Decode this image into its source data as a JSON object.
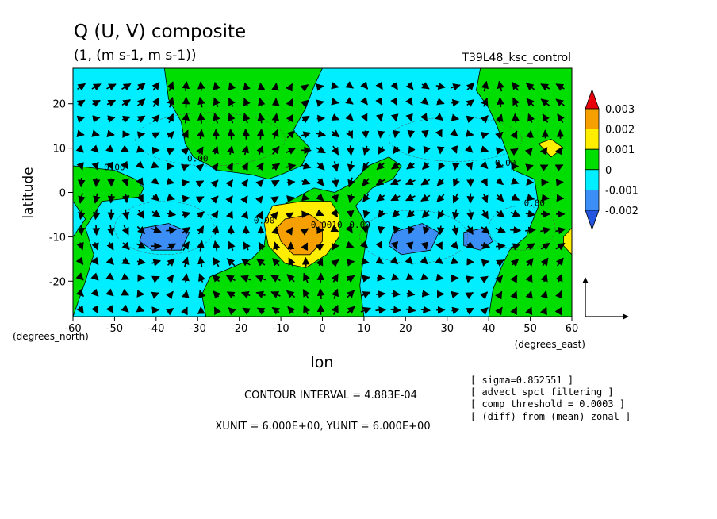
{
  "chart_data": {
    "type": "heatmap",
    "title": "Q (U, V) composite",
    "subtitle": "(1, (m s-1, m s-1))",
    "run_name": "T39L48_ksc_control",
    "xlabel": "lon",
    "ylabel": "latitude",
    "x_unit_label": "(degrees_east)",
    "y_unit_label": "(degrees_north)",
    "xlim": [
      -60,
      60
    ],
    "ylim": [
      -28,
      28
    ],
    "x_ticks": [
      "-60",
      "-50",
      "-40",
      "-30",
      "-20",
      "-10",
      "0",
      "10",
      "20",
      "30",
      "40",
      "50",
      "60"
    ],
    "x_tick_values": [
      -60,
      -50,
      -40,
      -30,
      -20,
      -10,
      0,
      10,
      20,
      30,
      40,
      50,
      60
    ],
    "y_ticks": [
      "-20",
      "-10",
      "0",
      "10",
      "20"
    ],
    "y_tick_values": [
      -20,
      -10,
      0,
      10,
      20
    ],
    "colorbar": {
      "labels": [
        "0.003",
        "0.002",
        "0.001",
        "0",
        "-0.001",
        "-0.002"
      ],
      "values": [
        0.003,
        0.002,
        0.001,
        0,
        -0.001,
        -0.002
      ],
      "colors": [
        "#e8000b",
        "#f5a000",
        "#ffee00",
        "#00dd00",
        "#00eeff",
        "#3a8ef6",
        "#2455e0"
      ]
    },
    "contour_labels": [
      {
        "text": "0.00",
        "x": -50,
        "y": 5
      },
      {
        "text": "0.00",
        "x": -30,
        "y": 7
      },
      {
        "text": "0.00",
        "x": -14,
        "y": -7
      },
      {
        "text": "0.0010",
        "x": 1,
        "y": -8
      },
      {
        "text": "0.00",
        "x": 9,
        "y": -8
      },
      {
        "text": "0.00",
        "x": 44,
        "y": 6
      },
      {
        "text": "0.00",
        "x": 51,
        "y": -3
      }
    ],
    "regions": [
      {
        "level": 0,
        "points": [
          [
            -60,
            -28
          ],
          [
            -60,
            -10
          ],
          [
            -57,
            -6
          ],
          [
            -60,
            -2
          ],
          [
            -60,
            6
          ],
          [
            -50,
            5
          ],
          [
            -45,
            3
          ],
          [
            -43,
            1
          ],
          [
            -44,
            -1
          ],
          [
            -53,
            -2
          ],
          [
            -57,
            -8
          ],
          [
            -55,
            -14
          ],
          [
            -57,
            -20
          ],
          [
            -60,
            -28
          ]
        ]
      },
      {
        "level": 0,
        "points": [
          [
            -38,
            28
          ],
          [
            -37,
            21
          ],
          [
            -34,
            16
          ],
          [
            -33,
            11
          ],
          [
            -31,
            8
          ],
          [
            -25,
            5
          ],
          [
            -17,
            4
          ],
          [
            -13,
            3
          ],
          [
            -10,
            4
          ],
          [
            -5,
            6
          ],
          [
            -3,
            10
          ],
          [
            -7,
            14
          ],
          [
            -4,
            19
          ],
          [
            -2,
            24
          ],
          [
            0,
            28
          ]
        ]
      },
      {
        "level": 0,
        "points": [
          [
            -28,
            -28
          ],
          [
            -29,
            -23
          ],
          [
            -27,
            -19
          ],
          [
            -22,
            -17
          ],
          [
            -17,
            -15
          ],
          [
            -14,
            -12
          ],
          [
            -13,
            -5
          ],
          [
            -8,
            -2
          ],
          [
            -2,
            1
          ],
          [
            3,
            0
          ],
          [
            7,
            2
          ],
          [
            11,
            6
          ],
          [
            16,
            8
          ],
          [
            19,
            6
          ],
          [
            17,
            3
          ],
          [
            12,
            1
          ],
          [
            8,
            -3
          ],
          [
            11,
            -8
          ],
          [
            10,
            -14
          ],
          [
            9,
            -21
          ],
          [
            10,
            -28
          ]
        ]
      },
      {
        "level": 0,
        "points": [
          [
            38,
            28
          ],
          [
            37,
            23
          ],
          [
            40,
            19
          ],
          [
            42,
            15
          ],
          [
            44,
            10
          ],
          [
            46,
            5
          ],
          [
            51,
            3
          ],
          [
            52,
            -3
          ],
          [
            49,
            -10
          ],
          [
            45,
            -13
          ],
          [
            43,
            -17
          ],
          [
            41,
            -22
          ],
          [
            40,
            -28
          ],
          [
            60,
            -28
          ],
          [
            60,
            28
          ]
        ]
      },
      {
        "level": 0.001,
        "points": [
          [
            -12,
            -3
          ],
          [
            -5,
            -2
          ],
          [
            2,
            -2
          ],
          [
            4,
            -5
          ],
          [
            4,
            -10
          ],
          [
            1,
            -14
          ],
          [
            -4,
            -17
          ],
          [
            -9,
            -16
          ],
          [
            -13,
            -12
          ],
          [
            -14,
            -7
          ]
        ]
      },
      {
        "level": 0.002,
        "points": [
          [
            -9,
            -6
          ],
          [
            -3,
            -5
          ],
          [
            0,
            -7
          ],
          [
            0,
            -11
          ],
          [
            -3,
            -14
          ],
          [
            -7,
            -14
          ],
          [
            -10,
            -11
          ],
          [
            -11,
            -8
          ]
        ]
      },
      {
        "level": 0.001,
        "points": [
          [
            52,
            11
          ],
          [
            55,
            8
          ],
          [
            58,
            10
          ],
          [
            55,
            12
          ]
        ]
      },
      {
        "level": 0.001,
        "points": [
          [
            58,
            -10
          ],
          [
            60,
            -8
          ],
          [
            60,
            -14
          ],
          [
            58,
            -12
          ]
        ]
      },
      {
        "level": -0.001,
        "points": [
          [
            -43,
            -8
          ],
          [
            -37,
            -7
          ],
          [
            -32,
            -9
          ],
          [
            -34,
            -13
          ],
          [
            -41,
            -13
          ],
          [
            -44,
            -11
          ]
        ]
      },
      {
        "level": -0.001,
        "points": [
          [
            17,
            -9
          ],
          [
            24,
            -7
          ],
          [
            28,
            -9
          ],
          [
            26,
            -13
          ],
          [
            19,
            -14
          ],
          [
            16,
            -12
          ]
        ]
      },
      {
        "level": -0.001,
        "points": [
          [
            34,
            -9
          ],
          [
            39,
            -8
          ],
          [
            41,
            -11
          ],
          [
            38,
            -13
          ],
          [
            34,
            -12
          ]
        ]
      }
    ]
  },
  "annotations": {
    "contour_interval": "CONTOUR INTERVAL = 4.883E-04",
    "units": "XUNIT = 6.000E+00, YUNIT = 6.000E+00",
    "notes": [
      "[ sigma=0.852551 ]",
      "[ advect spct filtering ]",
      "[ comp threshold = 0.0003 ]",
      "[ (diff) from (mean) zonal ]"
    ]
  }
}
